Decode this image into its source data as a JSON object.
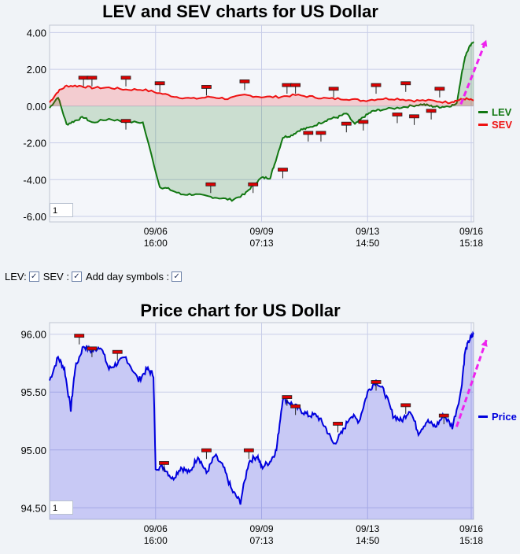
{
  "lev_chart": {
    "title": "LEV and SEV charts for US Dollar",
    "page_input": "1",
    "legend": [
      {
        "name": "LEV",
        "color": "#117711"
      },
      {
        "name": "SEV",
        "color": "#ee1111"
      }
    ]
  },
  "controls": {
    "lev_label": "LEV:",
    "sev_label": "SEV :",
    "day_symbols_label": "Add day symbols :"
  },
  "price_chart": {
    "title": "Price chart for US Dollar",
    "page_input": "1",
    "legend": [
      {
        "name": "Price",
        "color": "#0000dd"
      }
    ]
  },
  "chart_data": [
    {
      "type": "area",
      "title": "LEV and SEV charts for US Dollar",
      "ylim": [
        -6.3,
        4.4
      ],
      "y_ticks": [
        "4.00",
        "2.00",
        "0.00",
        "-2.00",
        "-4.00",
        "-6.00"
      ],
      "y_tick_values": [
        4,
        2,
        0,
        -2,
        -4,
        -6
      ],
      "x_ticks": [
        {
          "date": "09/06",
          "time": "16:00",
          "x": 0.25
        },
        {
          "date": "09/09",
          "time": "07:13",
          "x": 0.5
        },
        {
          "date": "09/13",
          "time": "14:50",
          "x": 0.75
        },
        {
          "date": "09/16",
          "time": "15:18",
          "x": 1.0
        }
      ],
      "grid": true,
      "legend_position": "right",
      "series": [
        {
          "name": "LEV",
          "color": "#117711",
          "x": [
            0.0,
            0.02,
            0.04,
            0.06,
            0.08,
            0.1,
            0.14,
            0.18,
            0.22,
            0.26,
            0.28,
            0.31,
            0.34,
            0.37,
            0.4,
            0.43,
            0.46,
            0.48,
            0.5,
            0.52,
            0.53,
            0.55,
            0.57,
            0.59,
            0.61,
            0.64,
            0.66,
            0.68,
            0.7,
            0.72,
            0.74,
            0.76,
            0.78,
            0.82,
            0.85,
            0.88,
            0.9,
            0.92,
            0.94,
            0.96,
            0.97,
            0.98,
            0.99,
            1.0
          ],
          "y": [
            -0.1,
            0.5,
            -1.0,
            -0.8,
            -0.6,
            -0.9,
            -0.7,
            -0.85,
            -0.9,
            -4.4,
            -4.5,
            -4.8,
            -4.8,
            -4.9,
            -5.0,
            -5.1,
            -4.8,
            -4.3,
            -3.9,
            -3.9,
            -3.2,
            -1.7,
            -1.6,
            -1.3,
            -1.2,
            -0.9,
            -0.7,
            -0.6,
            -0.4,
            -1.0,
            -0.6,
            -0.3,
            -0.2,
            -0.1,
            0.0,
            0.1,
            0.0,
            -0.05,
            0.0,
            0.1,
            1.5,
            2.7,
            3.2,
            3.5
          ]
        },
        {
          "name": "SEV",
          "color": "#ee1111",
          "x": [
            0.0,
            0.02,
            0.04,
            0.07,
            0.1,
            0.14,
            0.18,
            0.22,
            0.26,
            0.3,
            0.34,
            0.38,
            0.42,
            0.46,
            0.5,
            0.54,
            0.58,
            0.62,
            0.66,
            0.7,
            0.74,
            0.78,
            0.82,
            0.86,
            0.9,
            0.94,
            0.96,
            0.98,
            1.0
          ],
          "y": [
            0.2,
            0.8,
            1.1,
            1.1,
            1.0,
            1.0,
            0.9,
            0.9,
            0.7,
            0.5,
            0.4,
            0.5,
            0.4,
            0.6,
            0.5,
            0.5,
            0.6,
            0.5,
            0.4,
            0.4,
            0.3,
            0.4,
            0.4,
            0.3,
            0.3,
            0.2,
            0.3,
            0.4,
            0.3
          ]
        }
      ],
      "day_markers": {
        "lev": [
          [
            0.18,
            -0.85
          ],
          [
            0.38,
            -4.3
          ],
          [
            0.48,
            -4.3
          ],
          [
            0.55,
            -3.5
          ],
          [
            0.61,
            -1.5
          ],
          [
            0.64,
            -1.5
          ],
          [
            0.7,
            -1.0
          ],
          [
            0.74,
            -0.9
          ],
          [
            0.82,
            -0.5
          ],
          [
            0.86,
            -0.6
          ],
          [
            0.9,
            -0.3
          ]
        ],
        "sev": [
          [
            0.08,
            1.5
          ],
          [
            0.1,
            1.5
          ],
          [
            0.18,
            1.5
          ],
          [
            0.26,
            1.2
          ],
          [
            0.37,
            1.0
          ],
          [
            0.46,
            1.3
          ],
          [
            0.56,
            1.1
          ],
          [
            0.58,
            1.1
          ],
          [
            0.67,
            0.9
          ],
          [
            0.77,
            1.1
          ],
          [
            0.84,
            1.2
          ],
          [
            0.92,
            0.9
          ]
        ]
      },
      "trend_arrow": {
        "from": [
          0.97,
          0.1
        ],
        "to": [
          1.03,
          3.6
        ],
        "color": "#ee22ee"
      }
    },
    {
      "type": "area",
      "title": "Price chart for US Dollar",
      "ylim": [
        94.4,
        96.1
      ],
      "y_ticks": [
        "96.00",
        "95.50",
        "95.00",
        "94.50"
      ],
      "y_tick_values": [
        96.0,
        95.5,
        95.0,
        94.5
      ],
      "x_ticks": [
        {
          "date": "09/06",
          "time": "16:00",
          "x": 0.25
        },
        {
          "date": "09/09",
          "time": "07:13",
          "x": 0.5
        },
        {
          "date": "09/13",
          "time": "14:50",
          "x": 0.75
        },
        {
          "date": "09/16",
          "time": "15:18",
          "x": 1.0
        }
      ],
      "grid": true,
      "legend_position": "right",
      "series": [
        {
          "name": "Price",
          "color": "#0000dd",
          "x": [
            0.0,
            0.02,
            0.035,
            0.05,
            0.06,
            0.08,
            0.1,
            0.12,
            0.14,
            0.16,
            0.18,
            0.21,
            0.23,
            0.245,
            0.25,
            0.27,
            0.29,
            0.31,
            0.33,
            0.35,
            0.37,
            0.39,
            0.41,
            0.43,
            0.45,
            0.47,
            0.49,
            0.5,
            0.52,
            0.535,
            0.55,
            0.57,
            0.59,
            0.61,
            0.63,
            0.65,
            0.67,
            0.69,
            0.71,
            0.73,
            0.75,
            0.77,
            0.79,
            0.81,
            0.83,
            0.85,
            0.87,
            0.89,
            0.91,
            0.93,
            0.95,
            0.97,
            0.98,
            0.99,
            1.0
          ],
          "y": [
            95.6,
            95.8,
            95.7,
            95.35,
            95.7,
            95.9,
            95.85,
            95.9,
            95.7,
            95.75,
            95.8,
            95.6,
            95.7,
            95.65,
            94.85,
            94.85,
            94.75,
            94.85,
            94.8,
            94.95,
            94.8,
            94.95,
            94.85,
            94.65,
            94.55,
            94.9,
            94.95,
            94.85,
            94.9,
            95.0,
            95.45,
            95.4,
            95.35,
            95.3,
            95.3,
            95.2,
            95.05,
            95.15,
            95.3,
            95.25,
            95.5,
            95.6,
            95.5,
            95.3,
            95.25,
            95.35,
            95.15,
            95.25,
            95.2,
            95.3,
            95.2,
            95.5,
            95.85,
            95.95,
            96.0
          ]
        }
      ],
      "day_markers": [
        [
          0.07,
          95.98
        ],
        [
          0.1,
          95.87
        ],
        [
          0.16,
          95.84
        ],
        [
          0.27,
          94.88
        ],
        [
          0.37,
          94.99
        ],
        [
          0.47,
          94.99
        ],
        [
          0.56,
          95.45
        ],
        [
          0.58,
          95.37
        ],
        [
          0.68,
          95.22
        ],
        [
          0.77,
          95.58
        ],
        [
          0.84,
          95.38
        ],
        [
          0.93,
          95.29
        ]
      ],
      "trend_arrow": {
        "from": [
          0.96,
          95.2
        ],
        "to": [
          1.03,
          95.95
        ],
        "color": "#ee22ee"
      }
    }
  ]
}
